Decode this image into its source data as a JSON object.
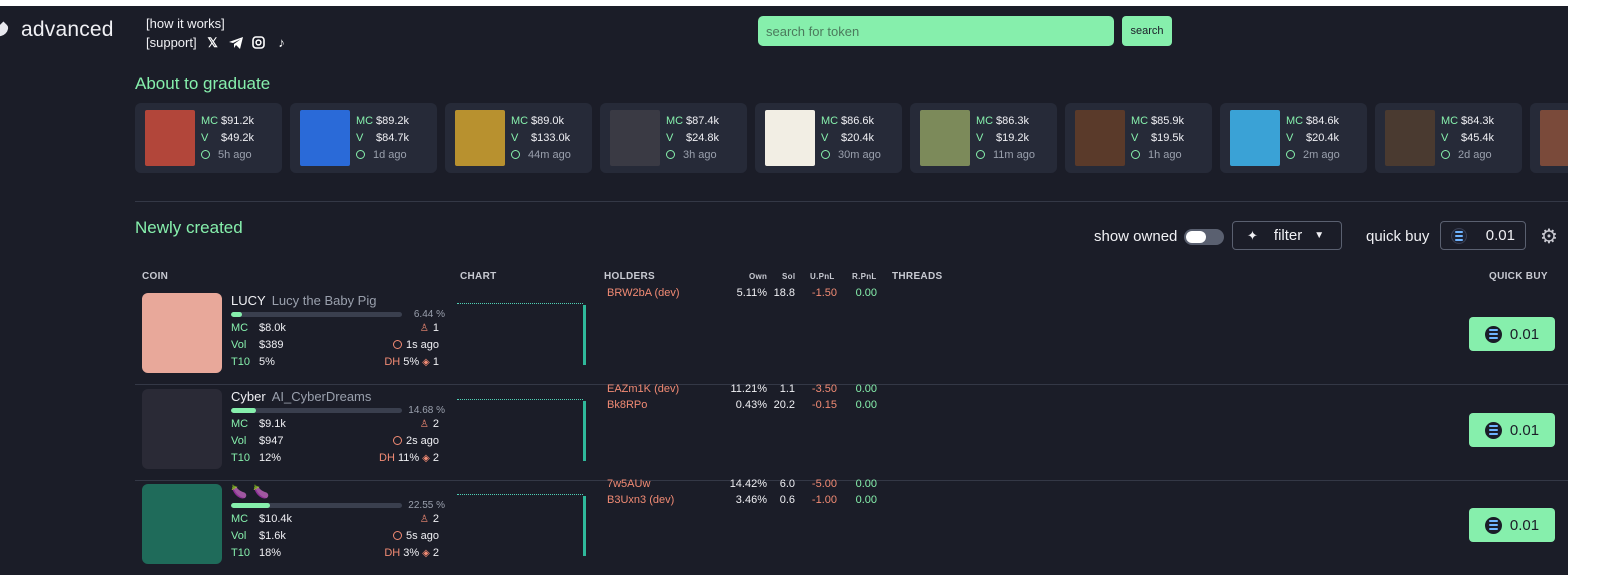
{
  "header": {
    "logo_text": "advanced",
    "how_it_works": "[how it works]",
    "support": "[support]",
    "social_icons": [
      "x-icon",
      "telegram-icon",
      "instagram-icon",
      "tiktok-icon"
    ],
    "search_placeholder": "search for token",
    "search_button": "search"
  },
  "graduate": {
    "title": "About to graduate",
    "labels": {
      "mc": "MC",
      "v": "V"
    },
    "cards": [
      {
        "mc": "$91.2k",
        "v": "$49.2k",
        "time": "5h ago",
        "color": "#b2463a"
      },
      {
        "mc": "$89.2k",
        "v": "$84.7k",
        "time": "1d ago",
        "color": "#2a6ad8"
      },
      {
        "mc": "$89.0k",
        "v": "$133.0k",
        "time": "44m ago",
        "color": "#b8912f"
      },
      {
        "mc": "$87.4k",
        "v": "$24.8k",
        "time": "3h ago",
        "color": "#3a3a44"
      },
      {
        "mc": "$86.6k",
        "v": "$20.4k",
        "time": "30m ago",
        "color": "#f2eee4"
      },
      {
        "mc": "$86.3k",
        "v": "$19.2k",
        "time": "11m ago",
        "color": "#7c8a5a"
      },
      {
        "mc": "$85.9k",
        "v": "$19.5k",
        "time": "1h ago",
        "color": "#5a3a2a"
      },
      {
        "mc": "$84.6k",
        "v": "$20.4k",
        "time": "2m ago",
        "color": "#3aa2d6"
      },
      {
        "mc": "$84.3k",
        "v": "$45.4k",
        "time": "2d ago",
        "color": "#4a3a30"
      },
      {
        "mc": "",
        "v": "",
        "time": "",
        "color": "#7a4a3a"
      }
    ]
  },
  "newly": {
    "title": "Newly created",
    "show_owned": "show owned",
    "filter": "filter",
    "quick_buy_label": "quick buy",
    "quick_buy_value": "0.01"
  },
  "table": {
    "headers": {
      "coin": "COIN",
      "chart": "CHART",
      "holders": "HOLDERS",
      "own": "Own",
      "sol": "Sol",
      "upnl": "U.PnL",
      "rpnl": "R.PnL",
      "threads": "THREADS",
      "quick_buy": "QUICK BUY"
    },
    "labels": {
      "mc": "MC",
      "vol": "Vol",
      "t10": "T10",
      "dh": "DH"
    },
    "rows": [
      {
        "ticker": "LUCY",
        "name": "Lucy the Baby Pig",
        "progress": 0.0644,
        "pct": "6.44 %",
        "mc": "$8.0k",
        "vol": "$389",
        "t10": "5%",
        "holders_count": "1",
        "age": "1s ago",
        "dh": "5%",
        "dh_count": "1",
        "thumb_color": "#e8a89a",
        "holders": [
          {
            "addr": "BRW2bA (dev)",
            "own": "5.11%",
            "sol": "18.8",
            "upnl": "-1.50",
            "rpnl": "0.00"
          }
        ],
        "button": "0.01"
      },
      {
        "ticker": "Cyber",
        "name": "AI_CyberDreams",
        "progress": 0.1468,
        "pct": "14.68 %",
        "mc": "$9.1k",
        "vol": "$947",
        "t10": "12%",
        "holders_count": "2",
        "age": "2s ago",
        "dh": "11%",
        "dh_count": "2",
        "thumb_color": "#2a2a36",
        "holders": [
          {
            "addr": "EAZm1K (dev)",
            "own": "11.21%",
            "sol": "1.1",
            "upnl": "-3.50",
            "rpnl": "0.00"
          },
          {
            "addr": "Bk8RPo",
            "own": "0.43%",
            "sol": "20.2",
            "upnl": "-0.15",
            "rpnl": "0.00"
          }
        ],
        "button": "0.01"
      },
      {
        "ticker": "🍆",
        "name": "🍆",
        "progress": 0.2255,
        "pct": "22.55 %",
        "mc": "$10.4k",
        "vol": "$1.6k",
        "t10": "18%",
        "holders_count": "2",
        "age": "5s ago",
        "dh": "3%",
        "dh_count": "2",
        "thumb_color": "#1f6b5a",
        "holders": [
          {
            "addr": "7w5AUw",
            "own": "14.42%",
            "sol": "6.0",
            "upnl": "-5.00",
            "rpnl": "0.00"
          },
          {
            "addr": "B3Uxn3 (dev)",
            "own": "3.46%",
            "sol": "0.6",
            "upnl": "-1.00",
            "rpnl": "0.00"
          }
        ],
        "button": "0.01"
      }
    ]
  }
}
